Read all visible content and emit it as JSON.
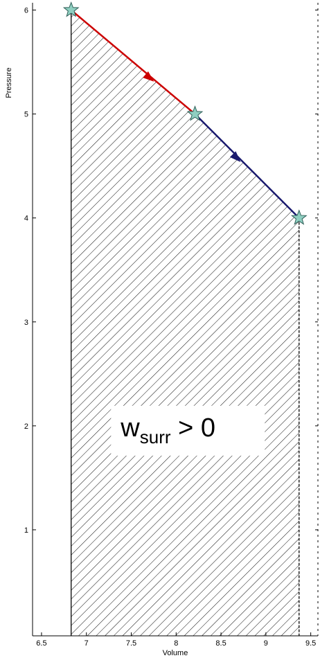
{
  "chart_data": {
    "type": "line",
    "xlabel": "Volume",
    "ylabel": "Pressure",
    "xlim": [
      6.4,
      9.58
    ],
    "ylim": [
      -0.02,
      6.07
    ],
    "xticks": [
      "6.5",
      "7",
      "7.5",
      "8",
      "8.5",
      "9",
      "9.5"
    ],
    "yticks": [
      "1",
      "2",
      "3",
      "4",
      "5",
      "6"
    ],
    "grid": false,
    "series": [
      {
        "color": "#cc0000",
        "x": [
          6.83,
          8.21
        ],
        "y": [
          6.0,
          5.0
        ],
        "arrow_at": [
          7.7,
          5.35
        ]
      },
      {
        "color": "#1a1a6e",
        "x": [
          8.21,
          9.37
        ],
        "y": [
          5.0,
          4.0
        ],
        "arrow_at": [
          8.67,
          4.58
        ]
      }
    ],
    "state_points": {
      "marker": "star",
      "color": "#8fcfc1",
      "x": [
        6.83,
        8.21,
        9.37
      ],
      "y": [
        6.0,
        5.0,
        4.0
      ]
    },
    "hatched_area": {
      "x": [
        6.83,
        8.21,
        9.37,
        9.37,
        6.83
      ],
      "y": [
        6.0,
        5.0,
        4.0,
        -0.02,
        -0.02
      ],
      "pattern": "diagonal hatch"
    },
    "annotation": {
      "main": "w",
      "subscript": "surr",
      "rest": " > 0",
      "at": [
        8.0,
        1.9
      ]
    }
  }
}
